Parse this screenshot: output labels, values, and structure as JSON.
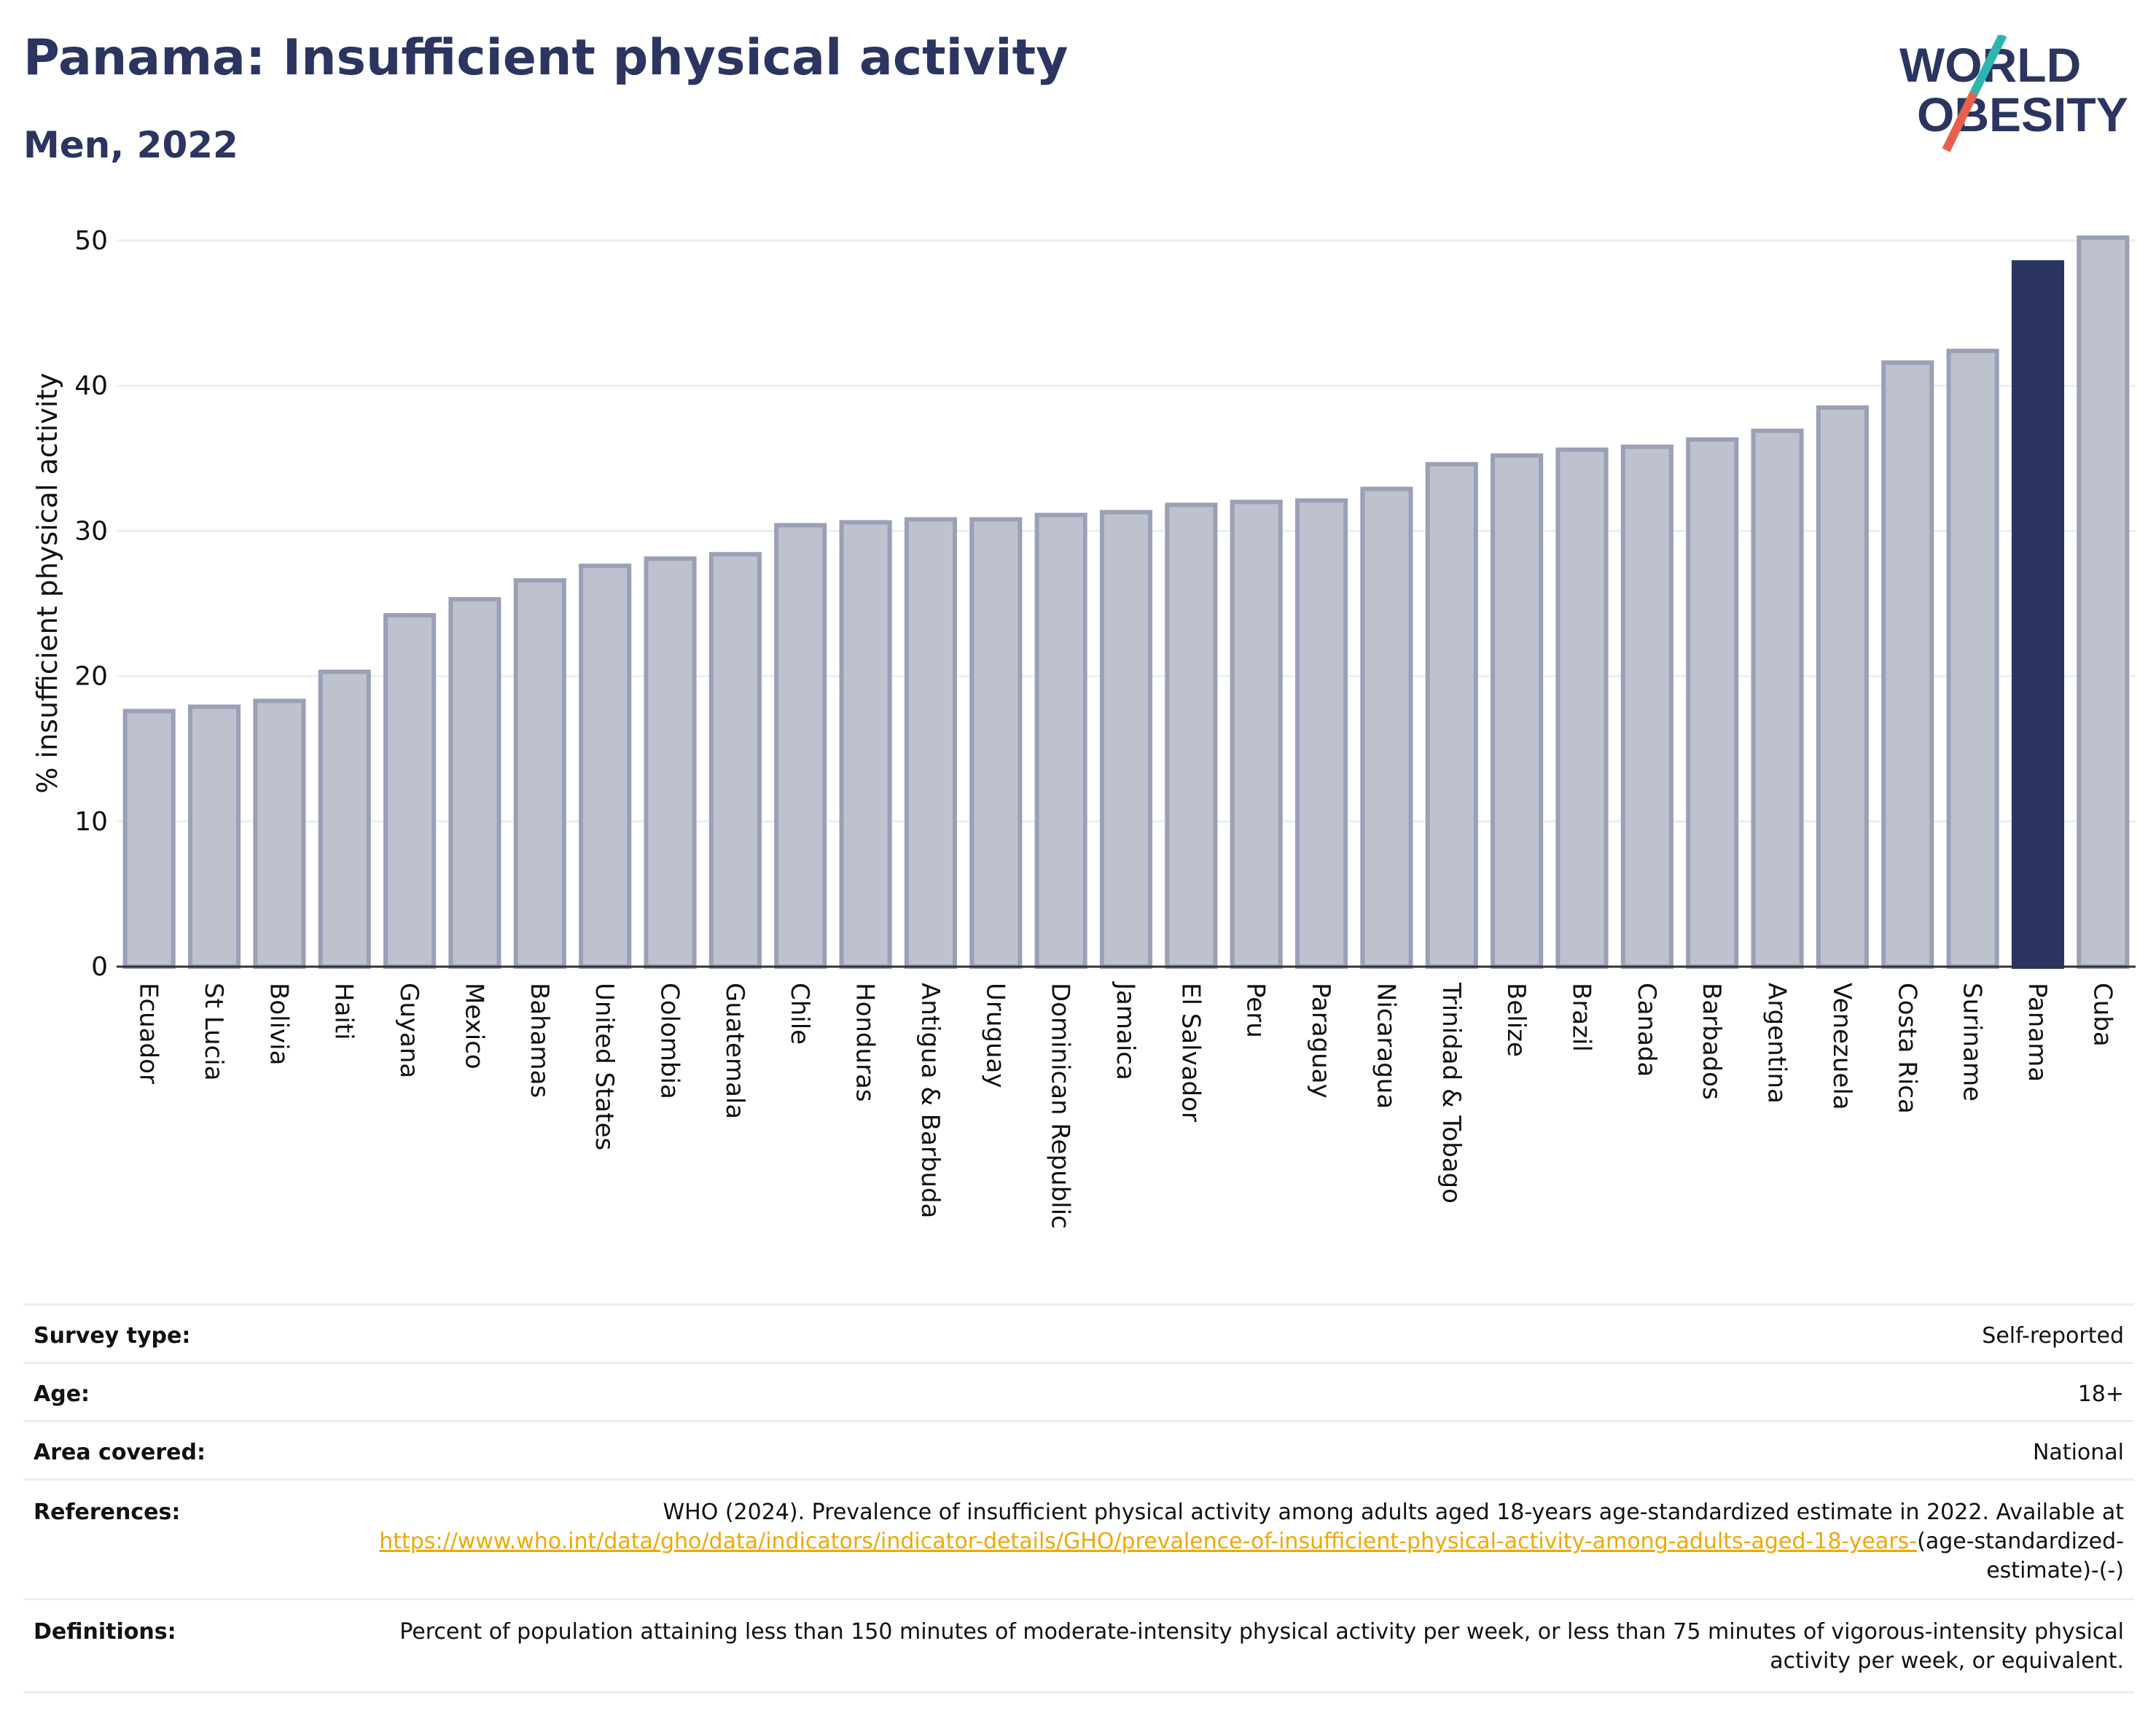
{
  "header": {
    "title": "Panama: Insufficient physical activity",
    "subtitle": "Men, 2022"
  },
  "logo": {
    "line1": "WORLD",
    "line2": "OBESITY",
    "colors": {
      "text": "#2b3560",
      "slash_top": "#2fb5b0",
      "slash_bottom": "#e8604c"
    }
  },
  "chart_data": {
    "type": "bar",
    "title": "",
    "xlabel": "",
    "ylabel": "% insufficient physical activity",
    "ylim": [
      0,
      50
    ],
    "yticks": [
      0,
      10,
      20,
      30,
      40,
      50
    ],
    "grid": true,
    "categories": [
      "Ecuador",
      "St Lucia",
      "Bolivia",
      "Haiti",
      "Guyana",
      "Mexico",
      "Bahamas",
      "United States",
      "Colombia",
      "Guatemala",
      "Chile",
      "Honduras",
      "Antigua & Barbuda",
      "Uruguay",
      "Dominican Republic",
      "Jamaica",
      "El Salvador",
      "Peru",
      "Paraguay",
      "Nicaragua",
      "Trinidad & Tobago",
      "Belize",
      "Brazil",
      "Canada",
      "Barbados",
      "Argentina",
      "Venezuela",
      "Costa Rica",
      "Suriname",
      "Panama",
      "Cuba"
    ],
    "values": [
      17.6,
      17.9,
      18.3,
      20.3,
      24.2,
      25.3,
      26.6,
      27.6,
      28.1,
      28.4,
      30.4,
      30.6,
      30.8,
      30.8,
      31.1,
      31.3,
      31.8,
      32.0,
      32.1,
      32.9,
      34.6,
      35.2,
      35.6,
      35.8,
      36.3,
      36.9,
      38.5,
      41.6,
      42.4,
      48.5,
      50.2
    ],
    "highlight": "Panama",
    "colors": {
      "bar": "#bec2cf",
      "bar_border": "#9aa0b6",
      "highlight": "#2b3560",
      "grid": "#eceef5",
      "axis": "#333333"
    }
  },
  "info": {
    "survey_type": {
      "label": "Survey type:",
      "value": "Self-reported"
    },
    "age": {
      "label": "Age:",
      "value": "18+"
    },
    "area": {
      "label": "Area covered:",
      "value": "National"
    },
    "references": {
      "label": "References:",
      "text": "WHO (2024). Prevalence of insufficient physical activity among adults aged 18-years age-standardized estimate in 2022. Available at",
      "link": "https://www.who.int/data/gho/data/indicators/indicator-details/GHO/prevalence-of-insufficient-physical-activity-among-adults-aged-18-years-",
      "suffix": "(age-standardized-estimate)-(-)"
    },
    "definitions": {
      "label": "Definitions:",
      "value": "Percent of population attaining less than 150 minutes of moderate-intensity physical activity per week, or less than 75 minutes of vigorous-intensity physical activity per week, or equivalent."
    }
  }
}
